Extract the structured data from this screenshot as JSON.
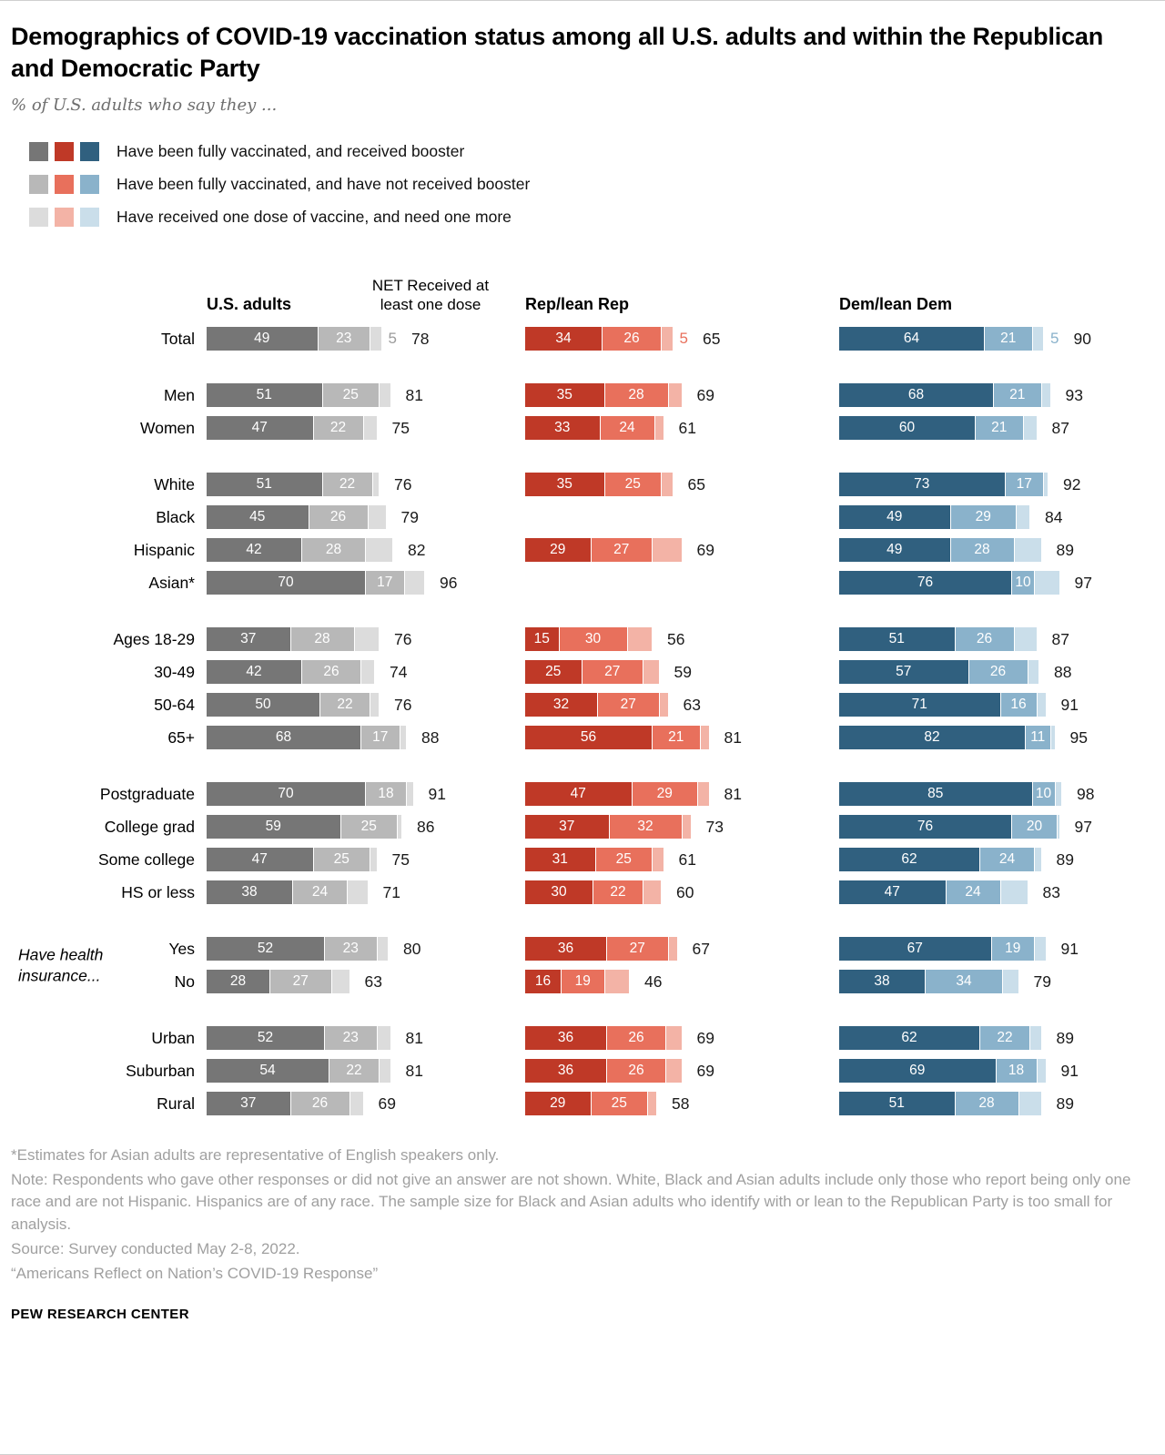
{
  "title": "Demographics of COVID-19 vaccination status among all U.S. adults and within the Republican and Democratic Party",
  "subtitle": "% of U.S. adults who say they ...",
  "columns": {
    "us": "U.S. adults",
    "net": "NET Received at least one dose",
    "rep": "Rep/lean Rep",
    "dem": "Dem/lean Dem"
  },
  "colors": {
    "us": [
      "#767676",
      "#b8b8b8",
      "#dcdcdc"
    ],
    "rep": [
      "#bf3927",
      "#e8705c",
      "#f3b3a6"
    ],
    "dem": [
      "#30607f",
      "#8ab2cb",
      "#cadeea"
    ],
    "one_dose_label": {
      "us": "#9b9b9b",
      "rep": "#e8705c",
      "dem": "#8ab2cb"
    }
  },
  "chart_data": {
    "type": "bar",
    "orientation": "horizontal",
    "stacked": true,
    "unit": "percent",
    "x_max": 100,
    "series": [
      "Have been fully vaccinated, and received booster",
      "Have been fully vaccinated, and have not received booster",
      "Have received one dose of vaccine, and need one more",
      "NET Received at least one dose"
    ],
    "column_groups": [
      "U.S. adults",
      "Rep/lean Rep",
      "Dem/lean Dem"
    ],
    "value_order_note": "each array is [booster, no_booster, one_dose, net]",
    "groups": [
      {
        "rows": [
          {
            "label": "Total",
            "one_dose_label": true,
            "us": [
              49,
              23,
              5,
              78
            ],
            "rep": [
              34,
              26,
              5,
              65
            ],
            "dem": [
              64,
              21,
              5,
              90
            ]
          }
        ]
      },
      {
        "rows": [
          {
            "label": "Men",
            "us": [
              51,
              25,
              5,
              81
            ],
            "rep": [
              35,
              28,
              6,
              69
            ],
            "dem": [
              68,
              21,
              4,
              93
            ]
          },
          {
            "label": "Women",
            "us": [
              47,
              22,
              6,
              75
            ],
            "rep": [
              33,
              24,
              4,
              61
            ],
            "dem": [
              60,
              21,
              6,
              87
            ]
          }
        ]
      },
      {
        "rows": [
          {
            "label": "White",
            "us": [
              51,
              22,
              3,
              76
            ],
            "rep": [
              35,
              25,
              5,
              65
            ],
            "dem": [
              73,
              17,
              2,
              92
            ]
          },
          {
            "label": "Black",
            "us": [
              45,
              26,
              8,
              79
            ],
            "rep": null,
            "dem": [
              49,
              29,
              6,
              84
            ]
          },
          {
            "label": "Hispanic",
            "us": [
              42,
              28,
              12,
              82
            ],
            "rep": [
              29,
              27,
              13,
              69
            ],
            "dem": [
              49,
              28,
              12,
              89
            ]
          },
          {
            "label": "Asian*",
            "us": [
              70,
              17,
              9,
              96
            ],
            "rep": null,
            "dem": [
              76,
              10,
              11,
              97
            ]
          }
        ]
      },
      {
        "rows": [
          {
            "label": "Ages 18-29",
            "us": [
              37,
              28,
              11,
              76
            ],
            "rep": [
              15,
              30,
              11,
              56
            ],
            "dem": [
              51,
              26,
              10,
              87
            ]
          },
          {
            "label": "30-49",
            "us": [
              42,
              26,
              6,
              74
            ],
            "rep": [
              25,
              27,
              7,
              59
            ],
            "dem": [
              57,
              26,
              5,
              88
            ]
          },
          {
            "label": "50-64",
            "us": [
              50,
              22,
              4,
              76
            ],
            "rep": [
              32,
              27,
              4,
              63
            ],
            "dem": [
              71,
              16,
              4,
              91
            ]
          },
          {
            "label": "65+",
            "us": [
              68,
              17,
              3,
              88
            ],
            "rep": [
              56,
              21,
              4,
              81
            ],
            "dem": [
              82,
              11,
              2,
              95
            ]
          }
        ]
      },
      {
        "rows": [
          {
            "label": "Postgraduate",
            "us": [
              70,
              18,
              3,
              91
            ],
            "rep": [
              47,
              29,
              5,
              81
            ],
            "dem": [
              85,
              10,
              3,
              98
            ]
          },
          {
            "label": "College grad",
            "us": [
              59,
              25,
              2,
              86
            ],
            "rep": [
              37,
              32,
              4,
              73
            ],
            "dem": [
              76,
              20,
              1,
              97
            ]
          },
          {
            "label": "Some college",
            "us": [
              47,
              25,
              3,
              75
            ],
            "rep": [
              31,
              25,
              5,
              61
            ],
            "dem": [
              62,
              24,
              3,
              89
            ]
          },
          {
            "label": "HS or less",
            "us": [
              38,
              24,
              9,
              71
            ],
            "rep": [
              30,
              22,
              8,
              60
            ],
            "dem": [
              47,
              24,
              12,
              83
            ]
          }
        ]
      },
      {
        "side_label": "Have health insurance...",
        "rows": [
          {
            "label": "Yes",
            "us": [
              52,
              23,
              5,
              80
            ],
            "rep": [
              36,
              27,
              4,
              67
            ],
            "dem": [
              67,
              19,
              5,
              91
            ]
          },
          {
            "label": "No",
            "us": [
              28,
              27,
              8,
              63
            ],
            "rep": [
              16,
              19,
              11,
              46
            ],
            "dem": [
              38,
              34,
              7,
              79
            ]
          }
        ]
      },
      {
        "rows": [
          {
            "label": "Urban",
            "us": [
              52,
              23,
              6,
              81
            ],
            "rep": [
              36,
              26,
              7,
              69
            ],
            "dem": [
              62,
              22,
              5,
              89
            ]
          },
          {
            "label": "Suburban",
            "us": [
              54,
              22,
              5,
              81
            ],
            "rep": [
              36,
              26,
              7,
              69
            ],
            "dem": [
              69,
              18,
              4,
              91
            ]
          },
          {
            "label": "Rural",
            "us": [
              37,
              26,
              6,
              69
            ],
            "rep": [
              29,
              25,
              4,
              58
            ],
            "dem": [
              51,
              28,
              10,
              89
            ]
          }
        ]
      }
    ]
  },
  "footnotes": [
    "*Estimates for Asian adults are representative of English speakers only.",
    "Note: Respondents who gave other responses or did not give an answer are not shown. White, Black and Asian adults include only those who report being only one race and are not Hispanic. Hispanics are of any race. The sample size for Black and Asian adults who identify with or lean to the Republican Party is too small for analysis.",
    "Source: Survey conducted May 2-8, 2022.",
    "“Americans Reflect on Nation’s COVID-19 Response”"
  ],
  "brand": "PEW RESEARCH CENTER"
}
